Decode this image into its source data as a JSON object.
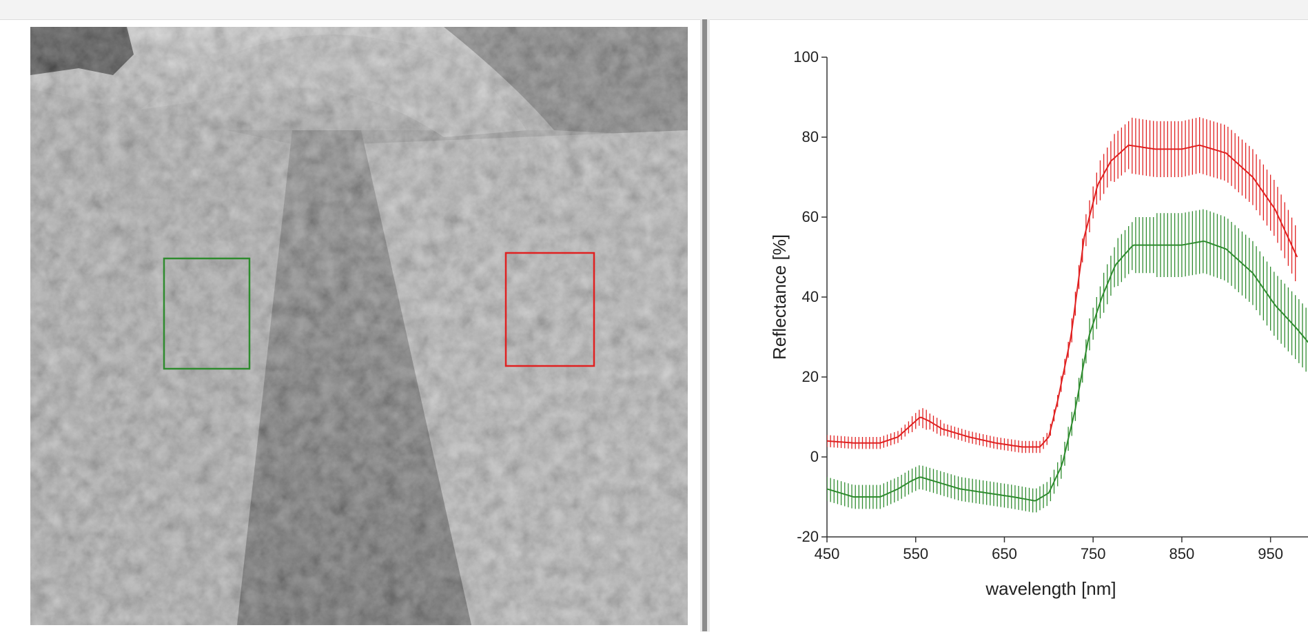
{
  "roi_colors": {
    "green": "#2e8b2e",
    "red": "#e02020"
  },
  "chart_data": {
    "type": "line",
    "xlabel": "wavelength [nm]",
    "ylabel": "Reflectance [%]",
    "xlim": [
      450,
      1000
    ],
    "ylim": [
      -20,
      100
    ],
    "x_ticks": [
      450,
      550,
      650,
      750,
      850,
      950
    ],
    "y_ticks": [
      -20,
      0,
      20,
      40,
      60,
      80,
      100
    ],
    "error_bars": true,
    "grid": false,
    "series": [
      {
        "color": "#e02020",
        "error": [
          1.5,
          1.5,
          1.5,
          1.5,
          2,
          2.5,
          2,
          1.5,
          1.5,
          1.5,
          1.5,
          1.5,
          1.5,
          2,
          3,
          4,
          5,
          6,
          7,
          7,
          7,
          7,
          7,
          7,
          7,
          7
        ],
        "points": [
          [
            450,
            4
          ],
          [
            480,
            3.5
          ],
          [
            510,
            3.5
          ],
          [
            530,
            5
          ],
          [
            545,
            8
          ],
          [
            555,
            10
          ],
          [
            565,
            9
          ],
          [
            580,
            7
          ],
          [
            610,
            5
          ],
          [
            640,
            3.5
          ],
          [
            670,
            2.5
          ],
          [
            690,
            2.5
          ],
          [
            700,
            5
          ],
          [
            710,
            14
          ],
          [
            725,
            30
          ],
          [
            740,
            55
          ],
          [
            755,
            68
          ],
          [
            770,
            74
          ],
          [
            790,
            78
          ],
          [
            820,
            77
          ],
          [
            850,
            77
          ],
          [
            870,
            78
          ],
          [
            900,
            76
          ],
          [
            930,
            70
          ],
          [
            955,
            62
          ],
          [
            980,
            50
          ]
        ]
      },
      {
        "color": "#2e8b2e",
        "error": [
          3,
          3,
          3,
          3,
          3,
          3,
          3,
          3,
          3,
          3,
          3,
          3,
          3,
          3,
          4,
          5,
          6,
          7,
          8,
          8,
          8,
          8,
          8,
          8,
          8,
          8
        ],
        "points": [
          [
            450,
            -8
          ],
          [
            480,
            -10
          ],
          [
            510,
            -10
          ],
          [
            530,
            -8
          ],
          [
            545,
            -6
          ],
          [
            555,
            -5
          ],
          [
            570,
            -6
          ],
          [
            600,
            -8
          ],
          [
            630,
            -9
          ],
          [
            660,
            -10
          ],
          [
            685,
            -11
          ],
          [
            700,
            -9
          ],
          [
            715,
            -2
          ],
          [
            730,
            12
          ],
          [
            745,
            30
          ],
          [
            760,
            40
          ],
          [
            775,
            48
          ],
          [
            795,
            53
          ],
          [
            820,
            53
          ],
          [
            850,
            53
          ],
          [
            875,
            54
          ],
          [
            900,
            52
          ],
          [
            930,
            46
          ],
          [
            955,
            38
          ],
          [
            980,
            32
          ],
          [
            995,
            28
          ]
        ]
      }
    ]
  }
}
